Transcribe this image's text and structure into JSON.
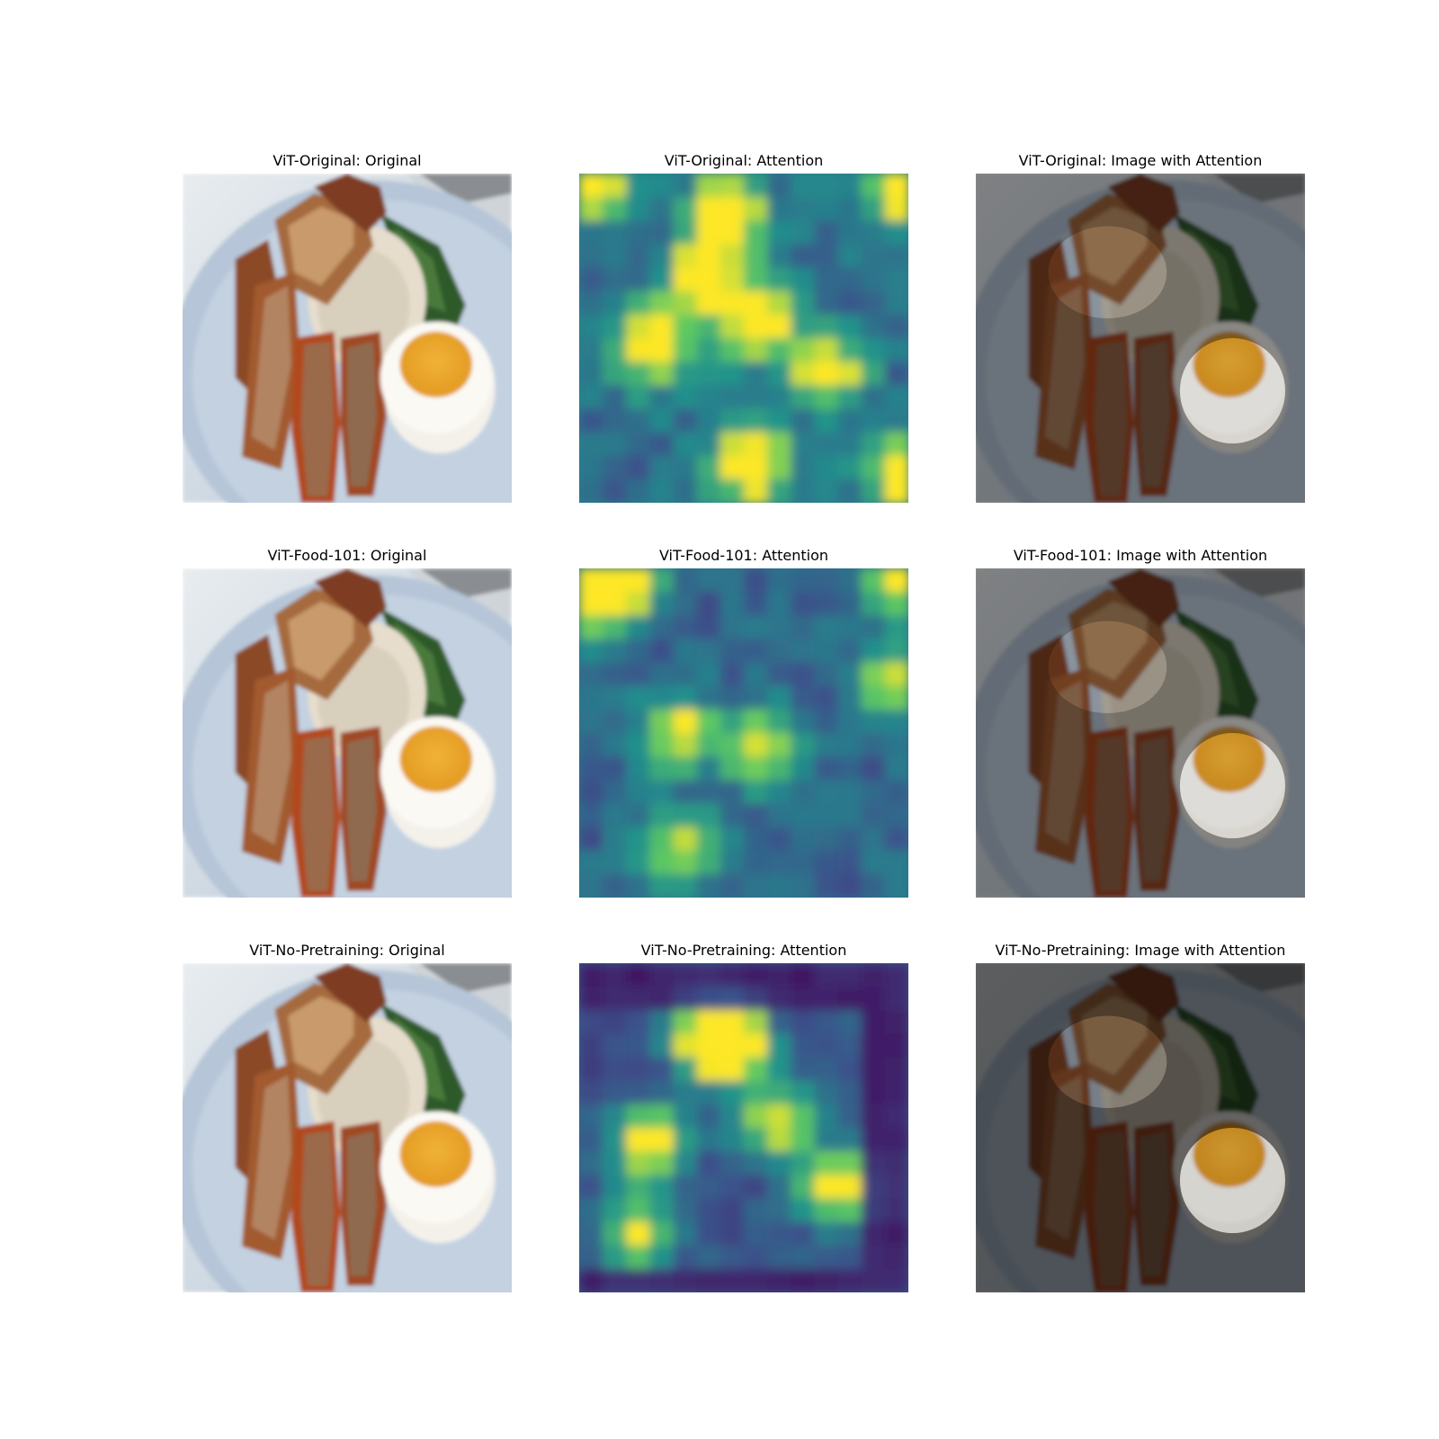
{
  "figure": {
    "rows": [
      {
        "model": "ViT-Original",
        "titles": [
          "ViT-Original: Original",
          "ViT-Original: Attention",
          "ViT-Original: Image with Attention"
        ]
      },
      {
        "model": "ViT-Food-101",
        "titles": [
          "ViT-Food-101: Original",
          "ViT-Food-101: Attention",
          "ViT-Food-101: Image with Attention"
        ]
      },
      {
        "model": "ViT-No-Pretraining",
        "titles": [
          "ViT-No-Pretraining: Original",
          "ViT-No-Pretraining: Attention",
          "ViT-No-Pretraining: Image with Attention"
        ]
      }
    ],
    "colormap": "viridis"
  }
}
